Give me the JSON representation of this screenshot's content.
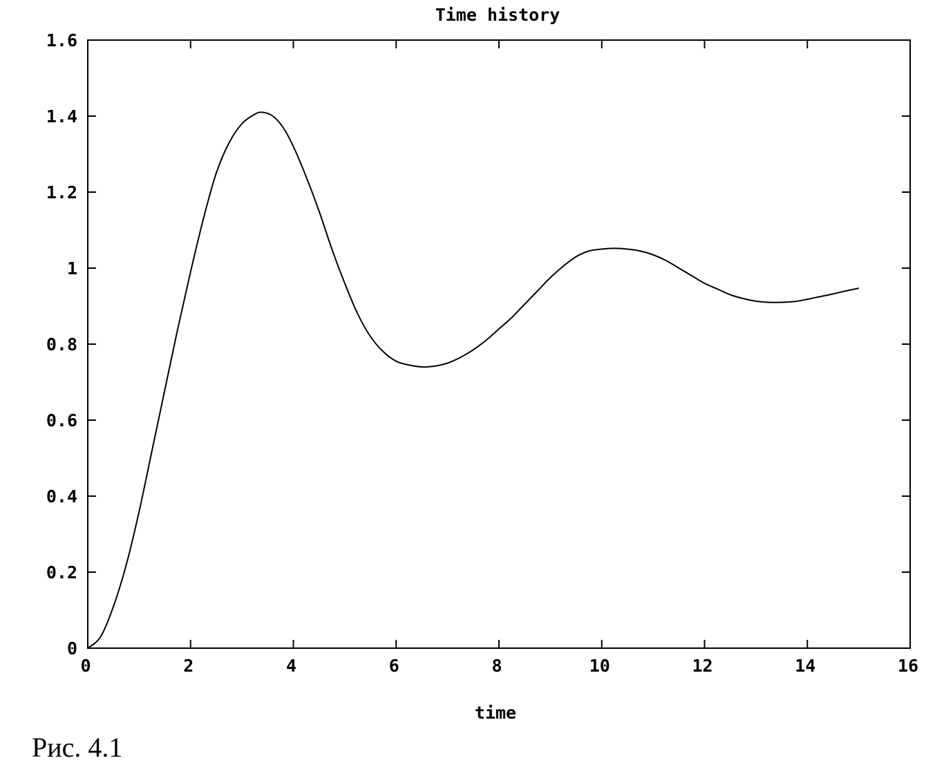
{
  "chart_data": {
    "type": "line",
    "title": "Time history",
    "xlabel": "time",
    "ylabel": "",
    "xlim": [
      0,
      16
    ],
    "ylim": [
      0,
      1.6
    ],
    "xticks": [
      0,
      2,
      4,
      6,
      8,
      10,
      12,
      14,
      16
    ],
    "xtick_labels": [
      "0",
      "2",
      "4",
      "6",
      "8",
      "10",
      "12",
      "14",
      "16"
    ],
    "yticks": [
      0,
      0.2,
      0.4,
      0.6,
      0.8,
      1.0,
      1.2,
      1.4,
      1.6
    ],
    "ytick_labels": [
      "0",
      "0.2",
      "0.4",
      "0.6",
      "0.8",
      "1",
      "1.2",
      "1.4",
      "1.6"
    ],
    "grid": false,
    "legend": "none",
    "series": [
      {
        "x": [
          0,
          0.25,
          0.5,
          0.75,
          1.0,
          1.25,
          1.5,
          1.75,
          2.0,
          2.25,
          2.5,
          2.75,
          3.0,
          3.25,
          3.4,
          3.6,
          3.8,
          4.0,
          4.25,
          4.5,
          4.75,
          5.0,
          5.25,
          5.5,
          5.75,
          6.0,
          6.25,
          6.5,
          6.75,
          7.0,
          7.25,
          7.5,
          7.75,
          8.0,
          8.25,
          8.5,
          8.75,
          9.0,
          9.25,
          9.5,
          9.75,
          10.0,
          10.25,
          10.5,
          10.75,
          11.0,
          11.25,
          11.5,
          11.75,
          12.0,
          12.25,
          12.5,
          12.75,
          13.0,
          13.25,
          13.5,
          13.75,
          14.0,
          14.25,
          14.5,
          14.75,
          15.0
        ],
        "y": [
          0,
          0.03,
          0.11,
          0.22,
          0.36,
          0.52,
          0.68,
          0.84,
          0.99,
          1.13,
          1.25,
          1.33,
          1.38,
          1.405,
          1.41,
          1.4,
          1.37,
          1.32,
          1.24,
          1.15,
          1.05,
          0.96,
          0.88,
          0.82,
          0.78,
          0.755,
          0.745,
          0.74,
          0.742,
          0.75,
          0.765,
          0.785,
          0.81,
          0.84,
          0.87,
          0.905,
          0.94,
          0.975,
          1.005,
          1.03,
          1.045,
          1.05,
          1.052,
          1.05,
          1.045,
          1.035,
          1.02,
          1.0,
          0.98,
          0.96,
          0.945,
          0.93,
          0.92,
          0.913,
          0.91,
          0.91,
          0.912,
          0.918,
          0.925,
          0.932,
          0.94,
          0.947
        ]
      }
    ]
  },
  "caption": "Рис. 4.1",
  "colors": {
    "line": "#000000",
    "axes": "#000000",
    "background": "#ffffff"
  }
}
